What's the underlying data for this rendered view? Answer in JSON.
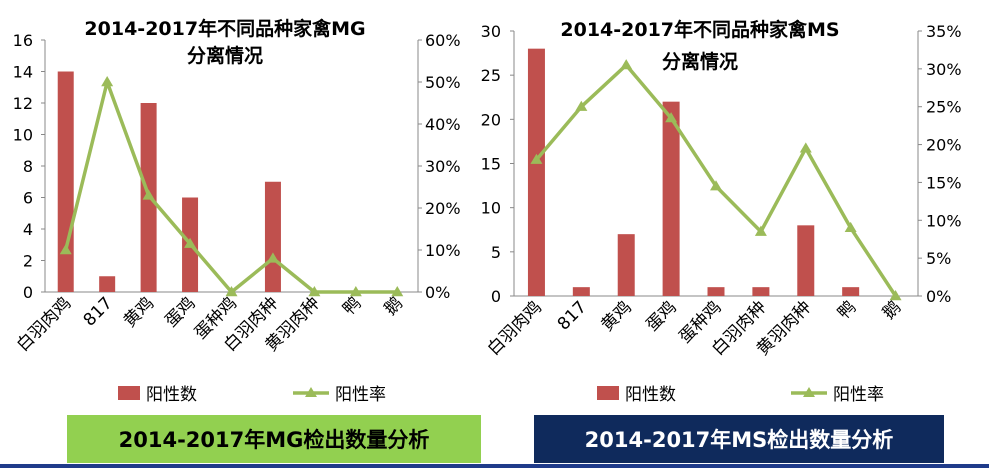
{
  "banners": {
    "mg": "2014-2017年MG检出数量分析",
    "ms": "2014-2017年MS检出数量分析"
  },
  "colors": {
    "bar": "#c0504d",
    "line": "#9bbb59",
    "banner_mg_bg": "#92d050",
    "banner_ms_bg": "#0f2a5c",
    "bottom_line": "#1f3b8a"
  },
  "chart_data": [
    {
      "type": "bar",
      "title_lines": [
        "2014-2017年不同品种家禽MG",
        "分离情况"
      ],
      "categories": [
        "白羽肉鸡",
        "817",
        "黄鸡",
        "蛋鸡",
        "蛋种鸡",
        "白羽肉种",
        "黄羽肉种",
        "鸭",
        "鹅"
      ],
      "series": [
        {
          "name": "阳性数",
          "type": "bar",
          "axis": "left",
          "values": [
            14,
            1,
            12,
            6,
            0,
            7,
            0,
            0,
            0
          ]
        },
        {
          "name": "阳性率",
          "type": "line",
          "axis": "right",
          "values": [
            0.1,
            0.5,
            0.23,
            0.115,
            0.0,
            0.08,
            0.0,
            0.0,
            0.0
          ]
        }
      ],
      "ylim_left": [
        0,
        16
      ],
      "ytick_step_left": 2,
      "ylim_right": [
        0,
        0.6
      ],
      "ytick_step_right": 0.1,
      "legend_position": "bottom",
      "grid": false
    },
    {
      "type": "bar",
      "title_lines": [
        "2014-2017年不同品种家禽MS",
        "分离情况"
      ],
      "categories": [
        "白羽肉鸡",
        "817",
        "黄鸡",
        "蛋鸡",
        "蛋种鸡",
        "白羽肉种",
        "黄羽肉种",
        "鸭",
        "鹅"
      ],
      "series": [
        {
          "name": "阳性数",
          "type": "bar",
          "axis": "left",
          "values": [
            28,
            1,
            7,
            22,
            1,
            1,
            8,
            1,
            0
          ]
        },
        {
          "name": "阳性率",
          "type": "line",
          "axis": "right",
          "values": [
            0.18,
            0.25,
            0.305,
            0.235,
            0.145,
            0.085,
            0.195,
            0.09,
            0.0
          ]
        }
      ],
      "ylim_left": [
        0,
        30
      ],
      "ytick_step_left": 5,
      "ylim_right": [
        0,
        0.35
      ],
      "ytick_step_right": 0.05,
      "legend_position": "bottom",
      "grid": false
    }
  ]
}
